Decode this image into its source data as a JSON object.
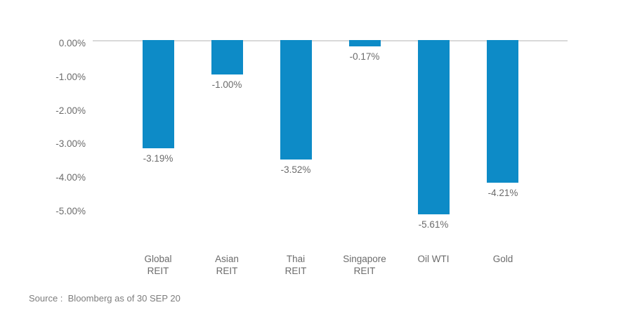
{
  "chart_data": {
    "type": "bar",
    "title": "",
    "xlabel": "",
    "ylabel": "",
    "categories": [
      "Global REIT",
      "Asian REIT",
      "Thai REIT",
      "Singapore REIT",
      "Oil WTI",
      "Gold"
    ],
    "category_lines": [
      [
        "Global",
        "REIT"
      ],
      [
        "Asian",
        "REIT"
      ],
      [
        "Thai",
        "REIT"
      ],
      [
        "Singapore",
        "REIT"
      ],
      [
        "Oil WTI"
      ],
      [
        "Gold"
      ]
    ],
    "values": [
      -3.19,
      -1.0,
      -3.52,
      -0.17,
      -5.61,
      -4.21
    ],
    "data_labels": [
      "-3.19%",
      "-1.00%",
      "-3.52%",
      "-0.17%",
      "-5.61%",
      "-4.21%"
    ],
    "y_ticks": [
      "0.00%",
      "-1.00%",
      "-2.00%",
      "-3.00%",
      "-4.00%",
      "-5.00%"
    ],
    "y_tick_values": [
      0,
      -1,
      -2,
      -3,
      -4,
      -5
    ],
    "ylim": [
      -5.15,
      0
    ],
    "grid": false,
    "legend": false,
    "bar_color": "#0d8bc7",
    "text_color": "#6b6b6b",
    "axis_line_color": "#d9d9d9"
  },
  "footer": {
    "source": "Source :  Bloomberg as of 30 SEP 20"
  }
}
